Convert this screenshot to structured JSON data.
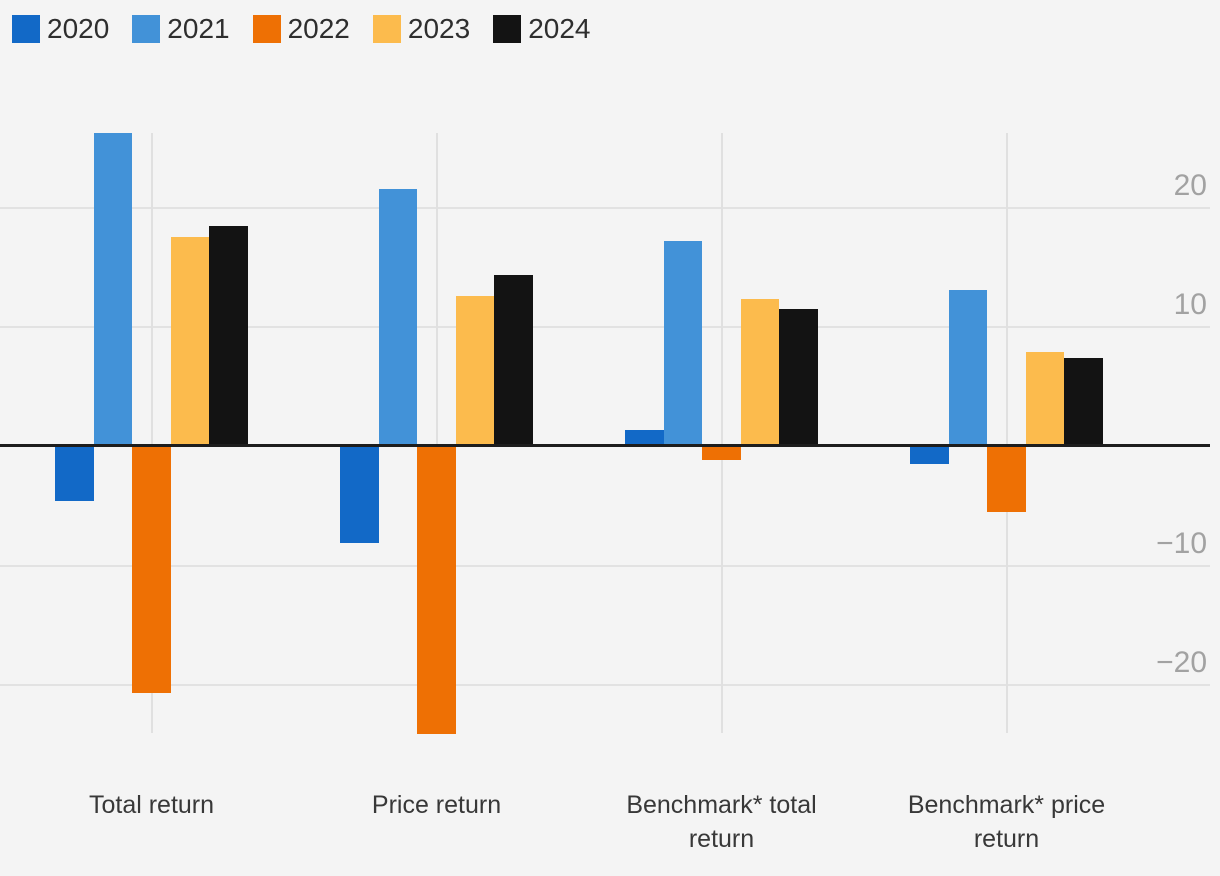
{
  "chart_data": {
    "type": "bar",
    "title": "",
    "xlabel": "",
    "ylabel": "",
    "categories": [
      "Total return",
      "Price return",
      "Benchmark* total return",
      "Benchmark* price return"
    ],
    "series": [
      {
        "name": "2020",
        "color": "#1269c7",
        "values": [
          -4.6,
          -8.1,
          1.4,
          -1.5
        ]
      },
      {
        "name": "2021",
        "color": "#4292d8",
        "values": [
          26.3,
          21.6,
          17.2,
          13.1
        ]
      },
      {
        "name": "2022",
        "color": "#ee7004",
        "values": [
          -20.7,
          -24.1,
          -1.1,
          -5.5
        ]
      },
      {
        "name": "2023",
        "color": "#fcbb4d",
        "values": [
          17.6,
          12.6,
          12.4,
          7.9
        ]
      },
      {
        "name": "2024",
        "color": "#131313",
        "values": [
          18.5,
          14.4,
          11.5,
          7.4
        ]
      }
    ],
    "y_ticks": [
      20,
      10,
      -10,
      -20
    ],
    "y_tick_labels": [
      "20",
      "10",
      "−10",
      "−20"
    ],
    "ylim": [
      -24.1,
      26.35
    ],
    "grid": true,
    "legend_position": "top-left",
    "zero_line_color": "#1d1d1d",
    "gridline_color": "#e2e2e2",
    "background_color": "#f4f4f4",
    "axis_label_color": "#a2a2a2",
    "category_label_color": "#383838"
  }
}
